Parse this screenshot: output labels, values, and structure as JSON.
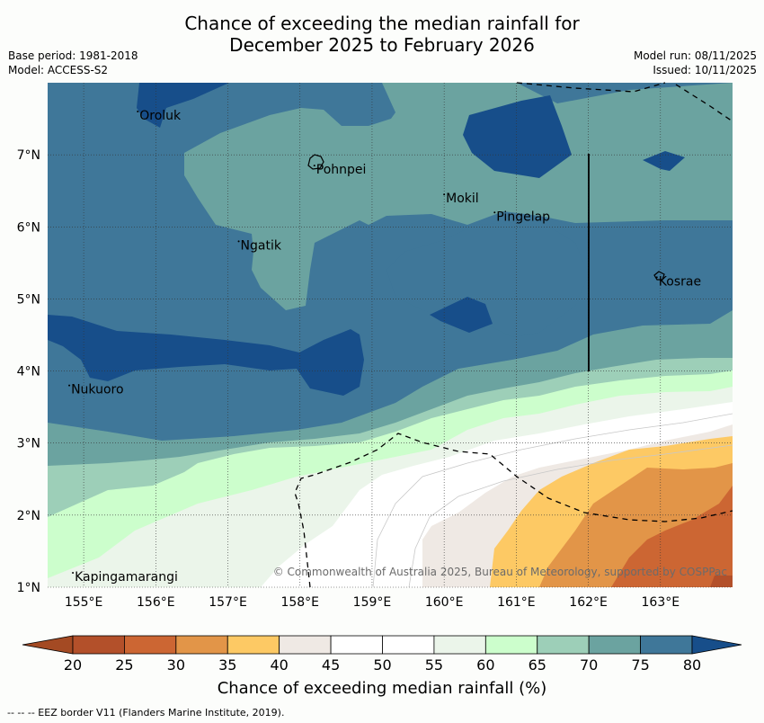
{
  "title": {
    "line1": "Chance of exceeding the median rainfall for",
    "line2": "December 2025 to February 2026"
  },
  "meta": {
    "base_period": "Base period: 1981-2018",
    "model": "Model: ACCESS-S2",
    "model_run": "Model run: 08/11/2025",
    "issued": "Issued: 10/11/2025"
  },
  "axes": {
    "x_ticks": [
      "155°E",
      "156°E",
      "157°E",
      "158°E",
      "159°E",
      "160°E",
      "161°E",
      "162°E",
      "163°E"
    ],
    "y_ticks": [
      "1°N",
      "2°N",
      "3°N",
      "4°N",
      "5°N",
      "6°N",
      "7°N"
    ],
    "lon_range": [
      154.5,
      164.0
    ],
    "lat_range": [
      1.0,
      8.0
    ]
  },
  "places": [
    {
      "name": "Oroluk",
      "lon": 155.75,
      "lat": 7.6
    },
    {
      "name": "Pohnpei",
      "lon": 158.2,
      "lat": 6.85
    },
    {
      "name": "Mokil",
      "lon": 160.0,
      "lat": 6.45
    },
    {
      "name": "Pingelap",
      "lon": 160.7,
      "lat": 6.2
    },
    {
      "name": "Ngatik",
      "lon": 157.15,
      "lat": 5.8
    },
    {
      "name": "Kosrae",
      "lon": 162.95,
      "lat": 5.3
    },
    {
      "name": "Nukuoro",
      "lon": 154.8,
      "lat": 3.8
    },
    {
      "name": "Kapingamarangi",
      "lon": 154.85,
      "lat": 1.2
    }
  ],
  "copyright": "© Commonwealth of Australia 2025, Bureau of Meteorology, supported by COSPPac",
  "colorbar": {
    "ticks": [
      "20",
      "25",
      "30",
      "35",
      "40",
      "45",
      "50",
      "55",
      "60",
      "65",
      "70",
      "75",
      "80"
    ],
    "label": "Chance of exceeding median rainfall (%)",
    "colors": {
      "below20": "#a44a23",
      "c20_25": "#b3502a",
      "c25_30": "#cc6633",
      "c30_35": "#e29548",
      "c35_40": "#fdc964",
      "c40_45": "#efe9e4",
      "c45_50": "#ffffff",
      "c50_55": "#ffffff",
      "c55_60": "#ebf5ea",
      "c60_65": "#ccfecc",
      "c65_70": "#9dcfb8",
      "c70_75": "#6ba3a0",
      "c75_80": "#3f7799",
      "above80": "#174e8a"
    }
  },
  "eez_note": "--  --  -- EEZ border V11 (Flanders Marine Institute, 2019)."
}
